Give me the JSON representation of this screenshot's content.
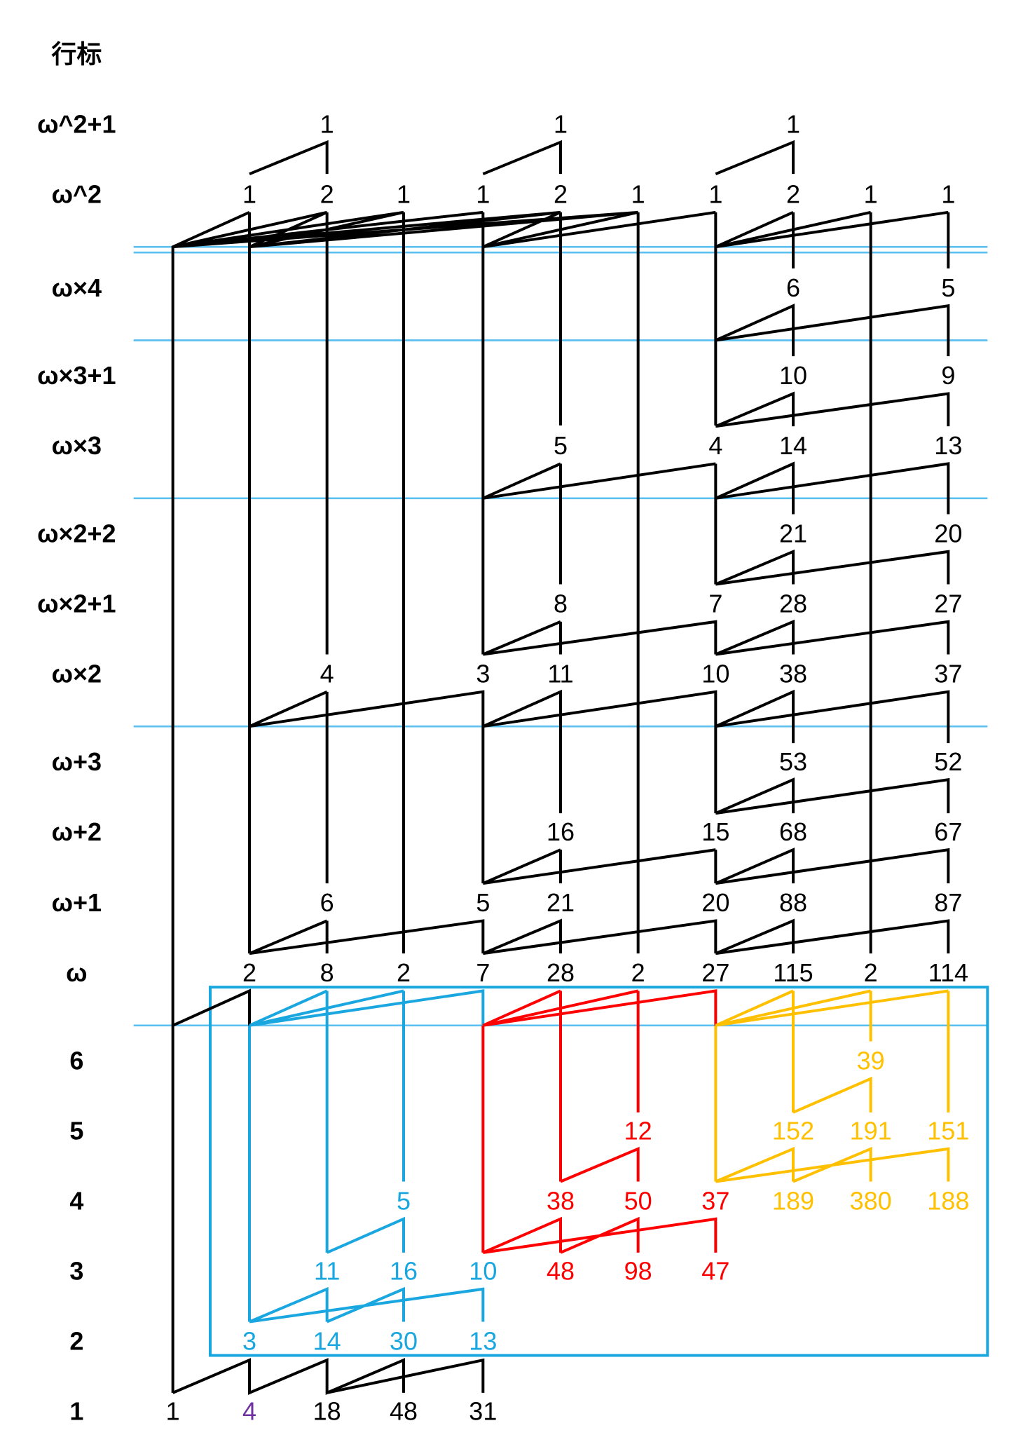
{
  "header": "行标",
  "rows": [
    {
      "label": "ω^2+1",
      "nodes": [
        1,
        1,
        1
      ]
    },
    {
      "label": "ω^2",
      "nodes": [
        1,
        2,
        1,
        1,
        2,
        1,
        1,
        2,
        1,
        1
      ]
    },
    {
      "label": "ω×4",
      "nodes": [
        6,
        5
      ]
    },
    {
      "label": "ω×3+1",
      "nodes": [
        10,
        9
      ]
    },
    {
      "label": "ω×3",
      "nodes": [
        5,
        4,
        14,
        13
      ]
    },
    {
      "label": "ω×2+2",
      "nodes": [
        21,
        20
      ]
    },
    {
      "label": "ω×2+1",
      "nodes": [
        8,
        7,
        28,
        27
      ]
    },
    {
      "label": "ω×2",
      "nodes": [
        4,
        3,
        11,
        10,
        38,
        37
      ]
    },
    {
      "label": "ω+3",
      "nodes": [
        53,
        52
      ]
    },
    {
      "label": "ω+2",
      "nodes": [
        16,
        15,
        68,
        67
      ]
    },
    {
      "label": "ω+1",
      "nodes": [
        6,
        5,
        21,
        20,
        88,
        87
      ]
    },
    {
      "label": "ω",
      "nodes": [
        2,
        8,
        2,
        7,
        28,
        2,
        27,
        115,
        2,
        114
      ]
    },
    {
      "label": "6",
      "nodes": [
        39
      ]
    },
    {
      "label": "5",
      "nodes": [
        12,
        152,
        191,
        151
      ]
    },
    {
      "label": "4",
      "nodes": [
        5,
        38,
        50,
        37,
        189,
        380,
        188
      ]
    },
    {
      "label": "3",
      "nodes": [
        11,
        16,
        10,
        48,
        98,
        47
      ]
    },
    {
      "label": "2",
      "nodes": [
        3,
        14,
        30,
        13
      ]
    },
    {
      "label": "1",
      "nodes": [
        1,
        4,
        18,
        48,
        31
      ]
    }
  ]
}
